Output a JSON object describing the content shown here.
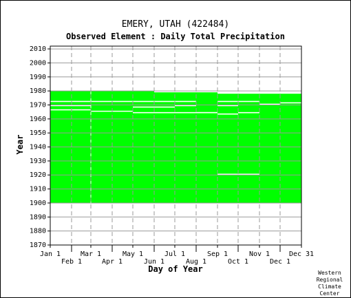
{
  "chart_data": {
    "type": "heatmap",
    "title": "EMERY, UTAH   (422484)",
    "subtitle": "Observed Element : Daily Total Precipitation",
    "xlabel": "Day of Year",
    "ylabel": "Year",
    "xlim": [
      1,
      366
    ],
    "ylim": [
      1870,
      2012
    ],
    "y_ticks": [
      1870,
      1880,
      1890,
      1900,
      1910,
      1920,
      1930,
      1940,
      1950,
      1960,
      1970,
      1980,
      1990,
      2000,
      2010
    ],
    "x_ticks": [
      {
        "label": "Jan 1",
        "day": 1,
        "row": 1
      },
      {
        "label": "Feb 1",
        "day": 32,
        "row": 2
      },
      {
        "label": "Mar 1",
        "day": 60,
        "row": 1
      },
      {
        "label": "Apr 1",
        "day": 91,
        "row": 2
      },
      {
        "label": "May 1",
        "day": 121,
        "row": 1
      },
      {
        "label": "Jun 1",
        "day": 152,
        "row": 2
      },
      {
        "label": "Jul 1",
        "day": 182,
        "row": 1
      },
      {
        "label": "Aug 1",
        "day": 213,
        "row": 2
      },
      {
        "label": "Sep 1",
        "day": 244,
        "row": 1
      },
      {
        "label": "Oct 1",
        "day": 274,
        "row": 2
      },
      {
        "label": "Nov 1",
        "day": 305,
        "row": 1
      },
      {
        "label": "Dec 1",
        "day": 335,
        "row": 2
      },
      {
        "label": "Dec 31",
        "day": 366,
        "row": 1
      }
    ],
    "grid": true,
    "fill_color": "#00ff00",
    "data_block": {
      "start_year": 1900,
      "end_year": 1979
    },
    "end_year_by_month": [
      1979,
      1979,
      1979,
      1979,
      1979,
      1978,
      1978,
      1978,
      1977,
      1977,
      1977,
      1977
    ],
    "gaps": [
      {
        "year": 1966.5,
        "start_day": 1,
        "end_day": 60
      },
      {
        "year": 1969.5,
        "start_day": 1,
        "end_day": 60
      },
      {
        "year": 1972.5,
        "start_day": 1,
        "end_day": 121
      },
      {
        "year": 1965.5,
        "start_day": 60,
        "end_day": 121
      },
      {
        "year": 1972.5,
        "start_day": 121,
        "end_day": 182
      },
      {
        "year": 1964.5,
        "start_day": 121,
        "end_day": 244
      },
      {
        "year": 1968.5,
        "start_day": 121,
        "end_day": 182
      },
      {
        "year": 1969.5,
        "start_day": 182,
        "end_day": 213
      },
      {
        "year": 1972.5,
        "start_day": 182,
        "end_day": 213
      },
      {
        "year": 1964.5,
        "start_day": 213,
        "end_day": 244
      },
      {
        "year": 1963.5,
        "start_day": 244,
        "end_day": 274
      },
      {
        "year": 1972.5,
        "start_day": 244,
        "end_day": 305
      },
      {
        "year": 1969.5,
        "start_day": 244,
        "end_day": 274
      },
      {
        "year": 1964.5,
        "start_day": 274,
        "end_day": 305
      },
      {
        "year": 1970.5,
        "start_day": 305,
        "end_day": 335
      },
      {
        "year": 1971.5,
        "start_day": 335,
        "end_day": 366
      },
      {
        "year": 1920.5,
        "start_day": 244,
        "end_day": 305
      }
    ],
    "gap_days": [
      {
        "year_from": 1900,
        "year_to": 1979,
        "day": 60
      }
    ]
  },
  "credit": [
    "Western",
    "Regional",
    "Climate",
    "Center"
  ]
}
